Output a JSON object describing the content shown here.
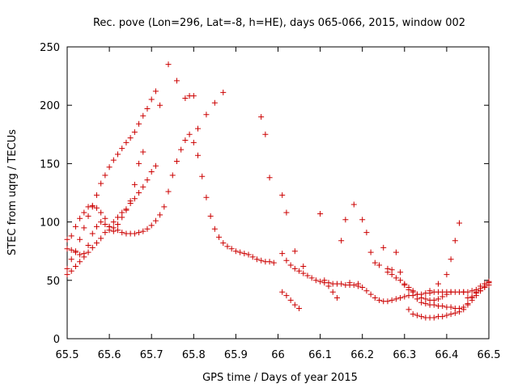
{
  "chart_data": {
    "type": "scatter",
    "title": "Rec. pove (Lon=296, Lat=-8, h=HE), days 065-066, 2015, window 002",
    "xlabel": "GPS time / Days of year 2015",
    "ylabel": "STEC from uqrg / TECUs",
    "xlim": [
      65.5,
      66.5
    ],
    "ylim": [
      0,
      250
    ],
    "xticks": [
      "65.5",
      "65.6",
      "65.7",
      "65.8",
      "65.9",
      "66",
      "66.1",
      "66.2",
      "66.3",
      "66.4",
      "66.5"
    ],
    "yticks": [
      "0",
      "50",
      "100",
      "150",
      "200",
      "250"
    ],
    "grid": false,
    "legend": "none",
    "marker": "plus",
    "color": "#cc0000",
    "series": [
      {
        "x": [
          65.5,
          65.51,
          65.52,
          65.53,
          65.54,
          65.55,
          65.56,
          65.57,
          65.58,
          65.59,
          65.6,
          65.61,
          65.62,
          65.63,
          65.64,
          65.65,
          65.66,
          65.67,
          65.68,
          65.69,
          65.7,
          65.71,
          65.72,
          65.73,
          65.74,
          65.75,
          65.76,
          65.77,
          65.78,
          65.79,
          65.8,
          65.81,
          65.82,
          65.83,
          65.84,
          65.85,
          65.86,
          65.87,
          65.88,
          65.89,
          65.9,
          65.91,
          65.92,
          65.93,
          65.94,
          65.95,
          65.96,
          65.97,
          65.98,
          65.99
        ],
        "y": [
          85,
          88,
          96,
          103,
          108,
          113,
          114,
          112,
          108,
          103,
          96,
          95,
          93,
          91,
          90,
          90,
          90,
          91,
          92,
          94,
          97,
          101,
          106,
          113,
          126,
          140,
          152,
          162,
          170,
          175,
          168,
          157,
          139,
          121,
          105,
          94,
          87,
          82,
          79,
          77,
          75,
          74,
          73,
          72,
          70,
          68,
          67,
          66,
          66,
          65
        ]
      },
      {
        "x": [
          65.5,
          65.51,
          65.52,
          65.53,
          65.54,
          65.55,
          65.56,
          65.57,
          65.58,
          65.59,
          65.6,
          65.61,
          65.62,
          65.63,
          65.64,
          65.65,
          65.66,
          65.67,
          65.68,
          65.69,
          65.7,
          65.71,
          65.72,
          65.74,
          65.76,
          65.78,
          65.79,
          65.8,
          65.81,
          65.83,
          65.85,
          65.87
        ],
        "y": [
          60,
          68,
          75,
          85,
          95,
          105,
          113,
          123,
          133,
          140,
          147,
          153,
          158,
          163,
          168,
          172,
          177,
          184,
          191,
          197,
          205,
          212,
          200,
          235,
          221,
          206,
          208,
          208,
          180,
          192,
          202,
          211
        ]
      },
      {
        "x": [
          65.5,
          65.51,
          65.52,
          65.53,
          65.54,
          65.55,
          65.56,
          65.57,
          65.58,
          65.59,
          65.6,
          65.61,
          65.62,
          65.63,
          65.64,
          65.65,
          65.66,
          65.67,
          65.68,
          65.69,
          65.7,
          65.71
        ],
        "y": [
          55,
          58,
          62,
          66,
          70,
          74,
          78,
          82,
          86,
          91,
          96,
          100,
          104,
          108,
          111,
          116,
          120,
          125,
          130,
          136,
          143,
          148
        ]
      },
      {
        "x": [
          65.5,
          65.51,
          65.52,
          65.53,
          65.54,
          65.55,
          65.56,
          65.57,
          65.58,
          65.59,
          65.6,
          65.61,
          65.62,
          65.63,
          65.64,
          65.65,
          65.66,
          65.67,
          65.68
        ],
        "y": [
          77,
          76,
          74,
          72,
          73,
          80,
          90,
          96,
          100,
          98,
          93,
          92,
          98,
          104,
          110,
          118,
          132,
          150,
          160
        ]
      },
      {
        "x": [
          65.96,
          65.97,
          65.98,
          66.01,
          66.02,
          66.04,
          66.06
        ],
        "y": [
          190,
          175,
          138,
          123,
          108,
          75,
          62
        ]
      },
      {
        "x": [
          66.01,
          66.02,
          66.03,
          66.04,
          66.05,
          66.06,
          66.07,
          66.08,
          66.09,
          66.1,
          66.11,
          66.12,
          66.13,
          66.14,
          66.15,
          66.16,
          66.17,
          66.18,
          66.19,
          66.2,
          66.21,
          66.22,
          66.23,
          66.24,
          66.25,
          66.26,
          66.27,
          66.28,
          66.29,
          66.3,
          66.31,
          66.32,
          66.33,
          66.34,
          66.35,
          66.36,
          66.37,
          66.38,
          66.39,
          66.4,
          66.41,
          66.42,
          66.43,
          66.44,
          66.45,
          66.46,
          66.47,
          66.48,
          66.49,
          66.5
        ],
        "y": [
          73,
          67,
          63,
          60,
          58,
          56,
          54,
          52,
          50,
          49,
          48,
          48,
          47,
          47,
          47,
          46,
          46,
          46,
          45,
          44,
          41,
          38,
          35,
          33,
          32,
          32,
          33,
          34,
          35,
          36,
          37,
          37,
          38,
          38,
          39,
          39,
          40,
          40,
          40,
          40,
          40,
          40,
          40,
          40,
          40,
          41,
          42,
          43,
          45,
          48
        ]
      },
      {
        "x": [
          66.01,
          66.02,
          66.03,
          66.04,
          66.05,
          66.1,
          66.11,
          66.12,
          66.13,
          66.14,
          66.15,
          66.16,
          66.17,
          66.18,
          66.19,
          66.2,
          66.21,
          66.22,
          66.23,
          66.24,
          66.25,
          66.26,
          66.27,
          66.28,
          66.29,
          66.3,
          66.31,
          66.32,
          66.33,
          66.34,
          66.35,
          66.36,
          66.37,
          66.38,
          66.39,
          66.4,
          66.41,
          66.42,
          66.43,
          66.44,
          66.45,
          66.46,
          66.47,
          66.48,
          66.49,
          66.5
        ],
        "y": [
          40,
          37,
          33,
          29,
          26,
          107,
          50,
          45,
          40,
          35,
          84,
          102,
          48,
          115,
          47,
          102,
          91,
          74,
          65,
          63,
          78,
          60,
          59,
          74,
          57,
          46,
          42,
          40,
          34,
          31,
          30,
          29,
          29,
          28,
          28,
          27,
          27,
          26,
          26,
          27,
          29,
          33,
          37,
          41,
          44,
          46
        ]
      },
      {
        "x": [
          66.26,
          66.27,
          66.28,
          66.29,
          66.3,
          66.31,
          66.32,
          66.33,
          66.34,
          66.35,
          66.36,
          66.37,
          66.38,
          66.39,
          66.4,
          66.41,
          66.42,
          66.43,
          66.44,
          66.45,
          66.46,
          66.47,
          66.48,
          66.49,
          66.5
        ],
        "y": [
          57,
          55,
          52,
          50,
          47,
          44,
          41,
          38,
          35,
          34,
          33,
          33,
          34,
          36,
          38,
          40,
          84,
          99,
          40,
          35,
          36,
          39,
          41,
          45,
          49
        ]
      },
      {
        "x": [
          66.31,
          66.32,
          66.33,
          66.34,
          66.35,
          66.36,
          66.37,
          66.38,
          66.39,
          66.4,
          66.41,
          66.42,
          66.43,
          66.44,
          66.45,
          66.46,
          66.47,
          66.48,
          66.49,
          66.5
        ],
        "y": [
          25,
          21,
          20,
          19,
          18,
          18,
          18,
          19,
          19,
          20,
          21,
          22,
          23,
          25,
          30,
          35,
          40,
          45,
          47,
          48
        ]
      },
      {
        "x": [
          66.36,
          66.38,
          66.4,
          66.41
        ],
        "y": [
          41,
          47,
          55,
          68
        ]
      }
    ]
  }
}
